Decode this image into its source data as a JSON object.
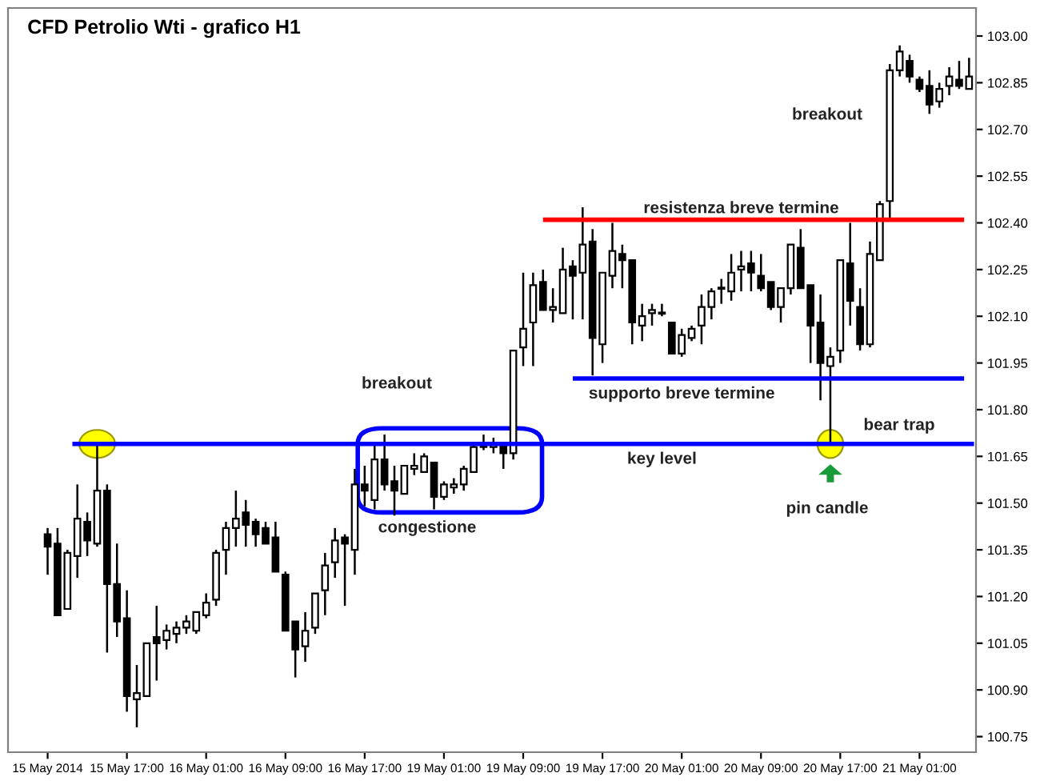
{
  "chart_data": {
    "type": "candlestick",
    "title": "CFD Petrolio Wti - grafico H1",
    "categories": [
      "15 May 2014",
      null,
      null,
      null,
      null,
      null,
      null,
      null,
      "15 May 17:00",
      null,
      null,
      null,
      null,
      null,
      null,
      null,
      "16 May 01:00",
      null,
      null,
      null,
      null,
      null,
      null,
      null,
      "16 May 09:00",
      null,
      null,
      null,
      null,
      null,
      null,
      null,
      "16 May 17:00",
      null,
      null,
      null,
      null,
      null,
      null,
      null,
      "19 May 01:00",
      null,
      null,
      null,
      null,
      null,
      null,
      null,
      "19 May 09:00",
      null,
      null,
      null,
      null,
      null,
      null,
      null,
      "19 May 17:00",
      null,
      null,
      null,
      null,
      null,
      null,
      null,
      "20 May 01:00",
      null,
      null,
      null,
      null,
      null,
      null,
      null,
      "20 May 09:00",
      null,
      null,
      null,
      null,
      null,
      null,
      null,
      "20 May 17:00",
      null,
      null,
      null,
      null,
      null,
      null,
      null,
      "21 May 01:00",
      null,
      null,
      null,
      null,
      null
    ],
    "ohlc": [
      [
        101.4,
        101.42,
        101.27,
        101.36
      ],
      [
        101.37,
        101.42,
        101.14,
        101.14
      ],
      [
        101.16,
        101.35,
        101.16,
        101.34
      ],
      [
        101.33,
        101.56,
        101.26,
        101.45
      ],
      [
        101.44,
        101.47,
        101.33,
        101.38
      ],
      [
        101.37,
        101.69,
        101.36,
        101.54
      ],
      [
        101.54,
        101.56,
        101.02,
        101.24
      ],
      [
        101.24,
        101.37,
        101.07,
        101.12
      ],
      [
        101.13,
        101.22,
        100.83,
        100.88
      ],
      [
        100.87,
        100.98,
        100.78,
        100.89
      ],
      [
        100.88,
        101.05,
        100.88,
        101.05
      ],
      [
        101.07,
        101.17,
        100.93,
        101.05
      ],
      [
        101.06,
        101.11,
        101.03,
        101.09
      ],
      [
        101.08,
        101.12,
        101.05,
        101.1
      ],
      [
        101.1,
        101.14,
        101.08,
        101.12
      ],
      [
        101.09,
        101.15,
        101.08,
        101.15
      ],
      [
        101.14,
        101.21,
        101.13,
        101.18
      ],
      [
        101.19,
        101.35,
        101.17,
        101.34
      ],
      [
        101.35,
        101.44,
        101.27,
        101.42
      ],
      [
        101.42,
        101.54,
        101.36,
        101.45
      ],
      [
        101.47,
        101.51,
        101.36,
        101.43
      ],
      [
        101.44,
        101.45,
        101.36,
        101.4
      ],
      [
        101.42,
        101.44,
        101.37,
        101.37
      ],
      [
        101.39,
        101.44,
        101.28,
        101.28
      ],
      [
        101.27,
        101.28,
        101.09,
        101.09
      ],
      [
        101.12,
        101.12,
        100.94,
        101.03
      ],
      [
        101.04,
        101.15,
        100.99,
        101.09
      ],
      [
        101.1,
        101.21,
        101.08,
        101.21
      ],
      [
        101.22,
        101.34,
        101.14,
        101.3
      ],
      [
        101.31,
        101.42,
        101.26,
        101.38
      ],
      [
        101.39,
        101.4,
        101.17,
        101.37
      ],
      [
        101.35,
        101.61,
        101.27,
        101.56
      ],
      [
        101.56,
        101.62,
        101.49,
        101.54
      ],
      [
        101.51,
        101.69,
        101.48,
        101.64
      ],
      [
        101.64,
        101.72,
        101.54,
        101.56
      ],
      [
        101.57,
        101.62,
        101.46,
        101.54
      ],
      [
        101.53,
        101.62,
        101.53,
        101.62
      ],
      [
        101.61,
        101.66,
        101.59,
        101.62
      ],
      [
        101.6,
        101.66,
        101.6,
        101.65
      ],
      [
        101.63,
        101.63,
        101.48,
        101.52
      ],
      [
        101.52,
        101.57,
        101.51,
        101.56
      ],
      [
        101.55,
        101.58,
        101.53,
        101.56
      ],
      [
        101.56,
        101.62,
        101.54,
        101.61
      ],
      [
        101.6,
        101.69,
        101.6,
        101.68
      ],
      [
        101.69,
        101.72,
        101.67,
        101.68
      ],
      [
        101.68,
        101.71,
        101.66,
        101.69
      ],
      [
        101.69,
        101.69,
        101.61,
        101.66
      ],
      [
        101.66,
        101.99,
        101.64,
        101.99
      ],
      [
        102.0,
        102.24,
        101.94,
        102.06
      ],
      [
        102.08,
        102.24,
        101.94,
        102.2
      ],
      [
        102.21,
        102.25,
        102.12,
        102.12
      ],
      [
        102.12,
        102.19,
        102.08,
        102.13
      ],
      [
        102.11,
        102.32,
        102.11,
        102.25
      ],
      [
        102.26,
        102.28,
        102.09,
        102.23
      ],
      [
        102.24,
        102.45,
        102.09,
        102.33
      ],
      [
        102.34,
        102.38,
        101.91,
        102.03
      ],
      [
        102.01,
        102.24,
        101.95,
        102.24
      ],
      [
        102.23,
        102.4,
        102.19,
        102.31
      ],
      [
        102.3,
        102.33,
        102.19,
        102.28
      ],
      [
        102.28,
        102.28,
        102.01,
        102.08
      ],
      [
        102.07,
        102.14,
        102.02,
        102.1
      ],
      [
        102.11,
        102.14,
        102.07,
        102.12
      ],
      [
        102.11,
        102.14,
        102.1,
        102.11
      ],
      [
        102.08,
        102.08,
        101.98,
        101.98
      ],
      [
        101.98,
        102.06,
        101.97,
        102.04
      ],
      [
        102.03,
        102.07,
        102.02,
        102.06
      ],
      [
        102.07,
        102.17,
        102.01,
        102.13
      ],
      [
        102.13,
        102.19,
        102.09,
        102.18
      ],
      [
        102.19,
        102.22,
        102.14,
        102.19
      ],
      [
        102.18,
        102.3,
        102.15,
        102.24
      ],
      [
        102.25,
        102.31,
        102.18,
        102.26
      ],
      [
        102.27,
        102.31,
        102.18,
        102.24
      ],
      [
        102.23,
        102.3,
        102.18,
        102.19
      ],
      [
        102.21,
        102.21,
        102.12,
        102.13
      ],
      [
        102.13,
        102.19,
        102.08,
        102.19
      ],
      [
        102.19,
        102.33,
        102.17,
        102.33
      ],
      [
        102.32,
        102.38,
        102.19,
        102.19
      ],
      [
        102.2,
        102.2,
        101.95,
        102.07
      ],
      [
        102.08,
        102.17,
        101.83,
        101.95
      ],
      [
        101.94,
        102.0,
        101.69,
        101.97
      ],
      [
        101.99,
        102.28,
        101.95,
        102.28
      ],
      [
        102.27,
        102.4,
        102.07,
        102.15
      ],
      [
        102.13,
        102.19,
        101.99,
        102.01
      ],
      [
        102.01,
        102.34,
        102.0,
        102.3
      ],
      [
        102.28,
        102.47,
        102.28,
        102.46
      ],
      [
        102.47,
        102.91,
        102.41,
        102.89
      ],
      [
        102.89,
        102.97,
        102.87,
        102.95
      ],
      [
        102.92,
        102.94,
        102.85,
        102.87
      ],
      [
        102.86,
        102.87,
        102.82,
        102.83
      ],
      [
        102.84,
        102.89,
        102.75,
        102.78
      ],
      [
        102.79,
        102.85,
        102.77,
        102.83
      ],
      [
        102.84,
        102.9,
        102.81,
        102.87
      ],
      [
        102.86,
        102.92,
        102.83,
        102.84
      ],
      [
        102.83,
        102.93,
        102.83,
        102.87
      ]
    ],
    "ylim": [
      100.7,
      103.09
    ],
    "yticks": [
      {
        "value": 100.75,
        "label": "100.75"
      },
      {
        "value": 100.9,
        "label": "100.90"
      },
      {
        "value": 101.05,
        "label": "101.05"
      },
      {
        "value": 101.2,
        "label": "101.20"
      },
      {
        "value": 101.35,
        "label": "101.35"
      },
      {
        "value": 101.5,
        "label": "101.50"
      },
      {
        "value": 101.65,
        "label": "101.65"
      },
      {
        "value": 101.8,
        "label": "101.80"
      },
      {
        "value": 101.95,
        "label": "101.95"
      },
      {
        "value": 102.1,
        "label": "102.10"
      },
      {
        "value": 102.25,
        "label": "102.25"
      },
      {
        "value": 102.4,
        "label": "102.40"
      },
      {
        "value": 102.55,
        "label": "102.55"
      },
      {
        "value": 102.7,
        "label": "102.70"
      },
      {
        "value": 102.85,
        "label": "102.85"
      },
      {
        "value": 103.0,
        "label": "103.00"
      }
    ],
    "ref_lines": [
      {
        "axis": "y",
        "value": 101.69,
        "label": "key level",
        "color": "#0000ff"
      },
      {
        "axis": "y",
        "value": 101.9,
        "label": "supporto breve termine",
        "color": "#0000ff"
      },
      {
        "axis": "y",
        "value": 102.41,
        "label": "resistenza breve termine",
        "color": "#ff0000"
      }
    ],
    "annotations": [
      "breakout",
      "congestione",
      "bear trap",
      "pin candle",
      "breakout"
    ],
    "grid": false
  }
}
